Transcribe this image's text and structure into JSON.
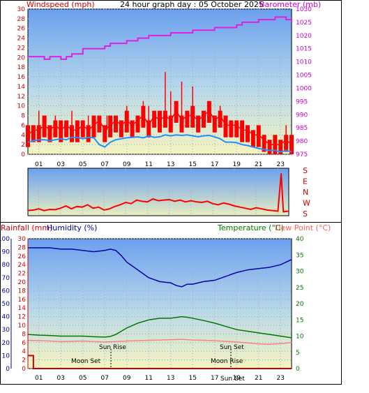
{
  "header": {
    "title": "24 hour graph day : 05 October 2025",
    "left_label": "Windspeed (mph)",
    "right_label": "Barometer (mb)"
  },
  "direction_labels": [
    "S",
    "E",
    "N",
    "W",
    "S"
  ],
  "bottom_header": {
    "rain_label": "Rainfall (mm)",
    "humidity_label": "Humidity (%)",
    "temp_label": "Temperature (°C)",
    "dew_label": "Dew Point (°C)"
  },
  "events": {
    "sun_rise": "Sun Rise",
    "sun_set": "Sun Set",
    "moon_set": "Moon Set",
    "moon_rise": "Moon Rise",
    "sun_set_bottom": "Sun Set"
  },
  "colors": {
    "wind": "#ff0000",
    "gust_avg": "#1e90ff",
    "barometer": "#e020e0",
    "direction": "#ff0000",
    "humidity": "#0000aa",
    "temperature": "#007700",
    "dewpoint": "#ff8080",
    "rain": "#cc0000",
    "label_red": "#cc0000",
    "label_magenta": "#cc00cc",
    "label_blue": "#0000aa",
    "label_green": "#007700",
    "label_pink": "#ff6060"
  },
  "chart_data": [
    {
      "type": "line",
      "title": "24 hour graph day : 05 October 2025",
      "x_ticks": [
        "01",
        "03",
        "05",
        "07",
        "09",
        "11",
        "13",
        "15",
        "17",
        "19",
        "21",
        "23"
      ],
      "xlim": [
        0,
        24
      ],
      "y_left_label": "Windspeed (mph)",
      "y_left_ticks": [
        0,
        2,
        4,
        6,
        8,
        10,
        12,
        14,
        16,
        18,
        20,
        22,
        24,
        26,
        28,
        30
      ],
      "ylim_left": [
        0,
        30
      ],
      "y_right_label": "Barometer (mb)",
      "y_right_ticks": [
        975,
        980,
        985,
        990,
        995,
        1000,
        1005,
        1010,
        1015,
        1020,
        1025,
        1030
      ],
      "ylim_right": [
        975,
        1030
      ],
      "grid": true,
      "series": [
        {
          "name": "Windspeed (mph)",
          "axis": "left",
          "x": [
            0,
            0.5,
            1,
            1.5,
            2,
            2.5,
            3,
            3.5,
            4,
            4.5,
            5,
            5.5,
            6,
            6.5,
            7,
            7.5,
            8,
            8.5,
            9,
            9.5,
            10,
            10.5,
            11,
            11.5,
            12,
            12.5,
            13,
            13.5,
            14,
            14.5,
            15,
            15.5,
            16,
            16.5,
            17,
            17.5,
            18,
            18.5,
            19,
            19.5,
            20,
            20.5,
            21,
            21.5,
            22,
            22.5,
            23,
            23.5,
            24
          ],
          "values": [
            4,
            5,
            5,
            6,
            5,
            6,
            5,
            6,
            5,
            5,
            6,
            5,
            6,
            7,
            5,
            6,
            7,
            6,
            7,
            6,
            7,
            8,
            6,
            8,
            7,
            8,
            7,
            9,
            7,
            8,
            8,
            7,
            8,
            9,
            7,
            8,
            6,
            6,
            6,
            5,
            5,
            4,
            4,
            3,
            2,
            2,
            2,
            3,
            2
          ]
        },
        {
          "name": "Wind gust peaks (mph)",
          "axis": "left",
          "x": [
            1,
            2.5,
            4,
            5.5,
            7.2,
            9,
            10.5,
            11,
            12.5,
            13,
            14,
            15,
            16.5,
            17.5,
            23.5
          ],
          "values": [
            9,
            8,
            9,
            8,
            8,
            10,
            11,
            10,
            17,
            13,
            15,
            14,
            11,
            10,
            6
          ]
        },
        {
          "name": "Average wind (mph)",
          "axis": "left",
          "x": [
            0,
            0.5,
            1,
            1.5,
            2,
            2.5,
            3,
            3.5,
            4,
            4.5,
            5,
            5.5,
            6,
            6.5,
            7,
            7.5,
            8,
            8.5,
            9,
            9.5,
            10,
            10.5,
            11,
            11.5,
            12,
            12.5,
            13,
            13.5,
            14,
            14.5,
            15,
            15.5,
            16,
            16.5,
            17,
            17.5,
            18,
            18.5,
            19,
            19.5,
            20,
            20.5,
            21,
            21.5,
            22,
            22.5,
            23,
            23.5,
            24
          ],
          "values": [
            2.5,
            2.8,
            3,
            3,
            2.8,
            3,
            3.2,
            3,
            3.5,
            3.5,
            3.2,
            3.5,
            3.4,
            2,
            1.5,
            2.5,
            3,
            3.2,
            3.4,
            3.5,
            3.6,
            3.4,
            3.8,
            3.5,
            3.6,
            4,
            3.8,
            4,
            3.9,
            4,
            3.8,
            3.6,
            3.8,
            3.9,
            3.6,
            3.2,
            2.5,
            2.5,
            2.4,
            2,
            1.8,
            1.5,
            1.2,
            1,
            0.8,
            0.8,
            0.5,
            0.8,
            0.5
          ]
        },
        {
          "name": "Barometer (mb)",
          "axis": "right",
          "x": [
            0,
            1,
            1.5,
            2,
            3,
            3.5,
            4,
            5,
            6,
            7,
            7.5,
            8,
            9,
            10,
            11,
            12,
            13,
            14,
            15,
            16,
            17,
            18,
            19,
            19.5,
            20,
            21,
            22,
            22.5,
            23,
            23.5,
            24
          ],
          "values": [
            1012,
            1012,
            1011,
            1012,
            1011,
            1012,
            1013,
            1015,
            1015,
            1016,
            1017,
            1017,
            1018,
            1019,
            1020,
            1020,
            1021,
            1021,
            1022,
            1022,
            1023,
            1023,
            1024,
            1025,
            1025,
            1026,
            1026,
            1027,
            1027,
            1026,
            1025
          ]
        }
      ]
    },
    {
      "type": "scatter",
      "title": "Wind direction",
      "categories": [
        "S",
        "E",
        "N",
        "W",
        "S"
      ],
      "x_ticks": [
        "01",
        "03",
        "05",
        "07",
        "09",
        "11",
        "13",
        "15",
        "17",
        "19",
        "21",
        "23"
      ],
      "xlim": [
        0,
        24
      ],
      "ylim": [
        0,
        360
      ],
      "series": [
        {
          "name": "Wind direction",
          "x": [
            0,
            0.5,
            1,
            1.5,
            2,
            2.5,
            3,
            3.5,
            4,
            4.5,
            5,
            5.5,
            6,
            6.5,
            7,
            7.5,
            8,
            8.5,
            9,
            9.5,
            10,
            10.5,
            11,
            11.5,
            12,
            12.5,
            13,
            13.5,
            14,
            14.5,
            15,
            15.5,
            16,
            16.5,
            17,
            17.5,
            18,
            18.5,
            19,
            19.5,
            20,
            20.5,
            21,
            21.5,
            22,
            22.5,
            23,
            23.3,
            23.5,
            24
          ],
          "values": [
            20,
            25,
            35,
            20,
            30,
            28,
            40,
            60,
            35,
            55,
            50,
            70,
            40,
            50,
            25,
            35,
            55,
            70,
            90,
            80,
            110,
            100,
            95,
            120,
            105,
            110,
            115,
            100,
            110,
            95,
            105,
            95,
            90,
            100,
            80,
            70,
            85,
            75,
            60,
            50,
            40,
            30,
            45,
            35,
            25,
            20,
            15,
            340,
            10,
            15
          ]
        }
      ]
    },
    {
      "type": "line",
      "title": "",
      "x_ticks": [
        "01",
        "03",
        "05",
        "07",
        "09",
        "11",
        "13",
        "15",
        "17",
        "19",
        "21",
        "23"
      ],
      "xlim": [
        0,
        24
      ],
      "y_humidity_label": "Humidity (%)",
      "y_humidity_ticks": [
        0,
        10,
        20,
        30,
        40,
        50,
        60,
        70,
        80,
        90,
        100
      ],
      "ylim_humidity": [
        0,
        100
      ],
      "y_rain_label": "Rainfall (mm)",
      "y_rain_ticks": [
        0,
        2,
        4,
        6,
        8,
        10,
        12,
        14,
        16,
        18,
        20,
        22,
        24,
        26,
        28,
        30
      ],
      "ylim_rain": [
        0,
        30
      ],
      "y_temp_label": "Temperature (°C)",
      "y_temp_ticks": [
        0,
        5,
        10,
        15,
        20,
        25,
        30,
        35,
        40
      ],
      "ylim_temp": [
        0,
        40
      ],
      "grid": true,
      "series": [
        {
          "name": "Humidity (%)",
          "axis": "humidity",
          "x": [
            0,
            1,
            2,
            3,
            4,
            5,
            6,
            7,
            7.5,
            8,
            8.5,
            9,
            10,
            11,
            12,
            13,
            13.5,
            14,
            14.5,
            15,
            16,
            17,
            18,
            19,
            20,
            21,
            22,
            23,
            24
          ],
          "values": [
            93,
            93,
            93,
            92,
            92,
            91,
            90,
            91,
            92,
            91,
            87,
            82,
            76,
            70,
            67,
            66,
            64,
            63,
            65,
            65,
            67,
            68,
            71,
            74,
            76,
            77,
            78,
            80,
            84
          ]
        },
        {
          "name": "Temperature (°C)",
          "axis": "temp",
          "x": [
            0,
            1,
            2,
            3,
            4,
            5,
            6,
            7,
            7.5,
            8,
            8.5,
            9,
            10,
            11,
            12,
            13,
            14,
            14.5,
            15,
            16,
            17,
            18,
            19,
            20,
            21,
            22,
            23,
            24
          ],
          "values": [
            10.5,
            10.3,
            10.2,
            10,
            10,
            10,
            9.8,
            9.7,
            9.9,
            10.5,
            11.5,
            12.5,
            14,
            15,
            15.5,
            15.5,
            16,
            15.8,
            15.5,
            14.8,
            14,
            13,
            12,
            11.5,
            11,
            10.5,
            10,
            9.5
          ]
        },
        {
          "name": "Dew Point (°C)",
          "axis": "temp",
          "x": [
            0,
            1,
            2,
            3,
            4,
            5,
            6,
            7,
            8,
            9,
            10,
            11,
            12,
            13,
            14,
            15,
            16,
            17,
            18,
            19,
            20,
            21,
            22,
            23,
            24
          ],
          "values": [
            8.7,
            8.6,
            8.5,
            8.3,
            8.4,
            8.5,
            8.3,
            8.2,
            8.3,
            8.5,
            8.6,
            8.7,
            8.8,
            8.9,
            9,
            8.8,
            8.7,
            8.6,
            8.4,
            8.2,
            7.9,
            7.6,
            7.5,
            7.7,
            8
          ]
        },
        {
          "name": "Rainfall (mm)",
          "axis": "rain",
          "x": [
            0,
            0.3,
            0.5,
            0.5,
            24
          ],
          "values": [
            3,
            3,
            3,
            0,
            0
          ]
        }
      ]
    }
  ]
}
